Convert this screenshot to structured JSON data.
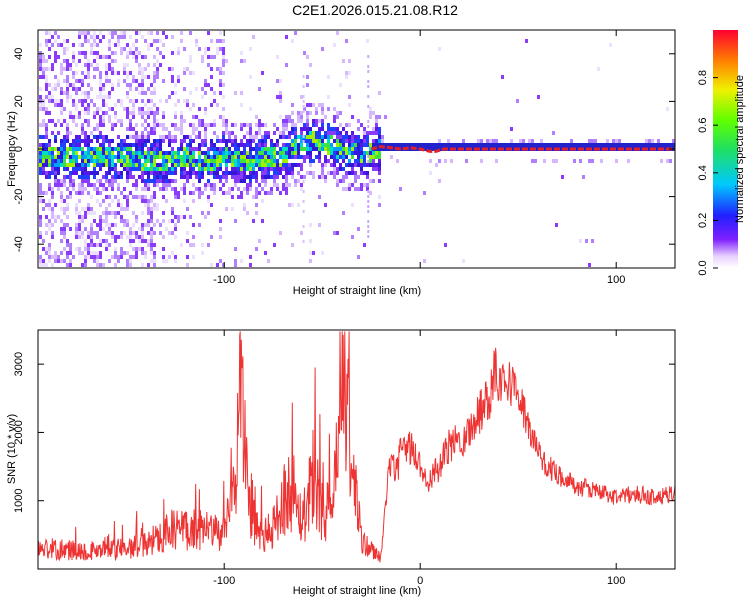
{
  "title": "C2E1.2026.015.21.08.R12",
  "colors": {
    "snr_line": "#ee3333",
    "ridge": "#e0202a",
    "axis": "#000000"
  },
  "chart_data": [
    {
      "type": "heatmap",
      "name": "spectrogram",
      "xlabel": "Height of straight line (km)",
      "ylabel": "Frequency (Hz)",
      "xlim": [
        -195,
        130
      ],
      "ylim": [
        -50,
        50
      ],
      "xticks": [
        -100,
        0,
        100
      ],
      "xtick_labels": [
        "-100",
        "",
        "100"
      ],
      "yticks": [
        -40,
        -20,
        0,
        20,
        40
      ],
      "ytick_labels": [
        "-40",
        "-20",
        "0",
        "20",
        "40"
      ],
      "ridge": {
        "x": [
          -195,
          -170,
          -150,
          -140,
          -130,
          -120,
          -110,
          -100,
          -90,
          -80,
          -70,
          -62,
          -55,
          -48,
          -42,
          -36,
          -30,
          -25,
          -20,
          -15,
          -10,
          -5,
          0,
          5,
          8,
          12,
          20,
          40,
          80,
          130
        ],
        "y": [
          -3,
          -2,
          -3,
          -4,
          -4,
          -3,
          -4,
          -3,
          -4,
          -3,
          -2,
          3,
          4,
          3,
          1,
          -1,
          -2,
          0,
          1,
          0.5,
          0,
          0.5,
          0,
          -1,
          -1,
          0,
          0,
          0,
          0,
          0
        ]
      },
      "colorbar": {
        "label": "Normalized spectral amplitude",
        "range": [
          0,
          1
        ],
        "ticks": [
          0.0,
          0.2,
          0.4,
          0.6,
          0.8
        ],
        "tick_labels": [
          "0.0",
          "0.2",
          "0.4",
          "0.6",
          "0.8"
        ]
      }
    },
    {
      "type": "line",
      "name": "snr",
      "xlabel": "Height of straight line (km)",
      "ylabel": "SNR (10 * v/v)",
      "xlim": [
        -195,
        130
      ],
      "ylim": [
        0,
        3500
      ],
      "xticks": [
        -100,
        0,
        100
      ],
      "xtick_labels": [
        "-100",
        "0",
        "100"
      ],
      "yticks": [
        1000,
        2000,
        3000
      ],
      "ytick_labels": [
        "1000",
        "2000",
        "3000"
      ],
      "x": [
        -195,
        -180,
        -165,
        -150,
        -140,
        -130,
        -120,
        -110,
        -100,
        -95,
        -91,
        -89,
        -85,
        -80,
        -75,
        -70,
        -65,
        -60,
        -55,
        -50,
        -45,
        -42,
        -39,
        -35,
        -30,
        -25,
        -22,
        -20,
        -18,
        -15,
        -12,
        -10,
        -5,
        0,
        5,
        10,
        15,
        20,
        25,
        30,
        35,
        38,
        40,
        45,
        50,
        55,
        60,
        65,
        70,
        75,
        80,
        90,
        100,
        110,
        120,
        130
      ],
      "y": [
        300,
        280,
        270,
        300,
        350,
        550,
        600,
        550,
        500,
        1200,
        2800,
        1500,
        700,
        450,
        600,
        1000,
        1200,
        700,
        1400,
        900,
        800,
        1600,
        3000,
        1500,
        400,
        300,
        200,
        150,
        900,
        1600,
        1400,
        1700,
        1800,
        1500,
        1300,
        1500,
        1800,
        1900,
        2000,
        2300,
        2500,
        3000,
        2800,
        2750,
        2600,
        2100,
        1700,
        1500,
        1400,
        1300,
        1200,
        1150,
        1050,
        1100,
        1050,
        1100
      ]
    }
  ]
}
